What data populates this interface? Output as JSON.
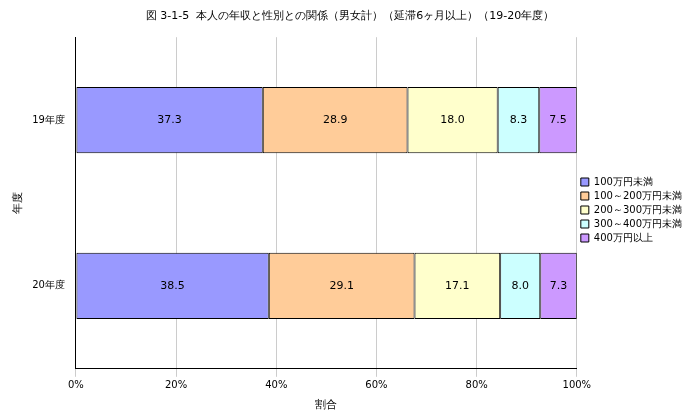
{
  "chart_data": {
    "type": "bar",
    "title": "図 3-1-5  本人の年収と性別との関係（男女計）（延滞6ヶ月以上）（19-20年度）",
    "x_label": "割合",
    "y_label": "年度",
    "orientation": "horizontal",
    "stacked": true,
    "data_labels": true,
    "grid": true,
    "legend": "right",
    "categories": [
      "19年度",
      "20年度"
    ],
    "xlim": [
      0,
      100
    ],
    "xticks": [
      {
        "value": 0,
        "label": "0%"
      },
      {
        "value": 20,
        "label": "20%"
      },
      {
        "value": 40,
        "label": "40%"
      },
      {
        "value": 60,
        "label": "60%"
      },
      {
        "value": 80,
        "label": "80%"
      },
      {
        "value": 100,
        "label": "100%"
      }
    ],
    "series": [
      {
        "name": "100万円未満",
        "color": "#9999ff",
        "values": [
          37.3,
          38.5
        ]
      },
      {
        "name": "100～200万円未満",
        "color": "#ffcc99",
        "values": [
          28.9,
          29.1
        ]
      },
      {
        "name": "200～300万円未満",
        "color": "#ffffcc",
        "values": [
          18.0,
          17.1
        ],
        "value_labels": [
          "18.0",
          "17.1"
        ]
      },
      {
        "name": "300～400万円未満",
        "color": "#ccffff",
        "values": [
          8.3,
          8.0
        ],
        "value_labels": [
          "8.3",
          "8.0"
        ]
      },
      {
        "name": "400万円以上",
        "color": "#cc99ff",
        "values": [
          7.5,
          7.3
        ]
      }
    ]
  }
}
